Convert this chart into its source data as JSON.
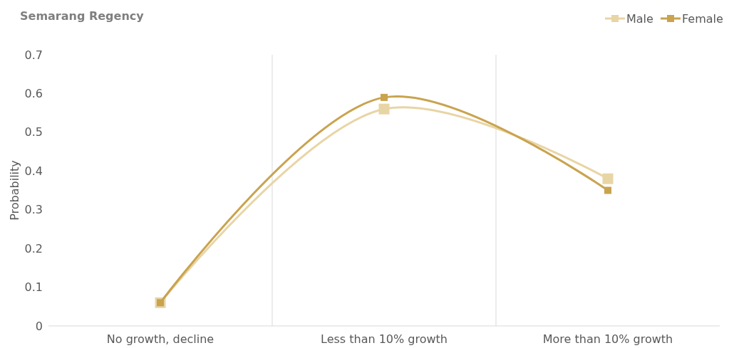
{
  "chart_data": {
    "type": "line",
    "title": "Semarang Regency",
    "ylabel": "Probability",
    "categories": [
      "No growth, decline",
      "Less than 10% growth",
      "More than 10% growth"
    ],
    "series": [
      {
        "name": "Male",
        "color": "#e8d5a5",
        "values": [
          0.06,
          0.56,
          0.38
        ]
      },
      {
        "name": "Female",
        "color": "#c9a34e",
        "values": [
          0.06,
          0.59,
          0.35
        ]
      }
    ],
    "ylim": [
      0,
      0.7
    ],
    "yticks": [
      0,
      0.1,
      0.2,
      0.3,
      0.4,
      0.5,
      0.6,
      0.7
    ],
    "grid": "x",
    "legend": "top right",
    "marker": "square",
    "line_style": "solid"
  }
}
